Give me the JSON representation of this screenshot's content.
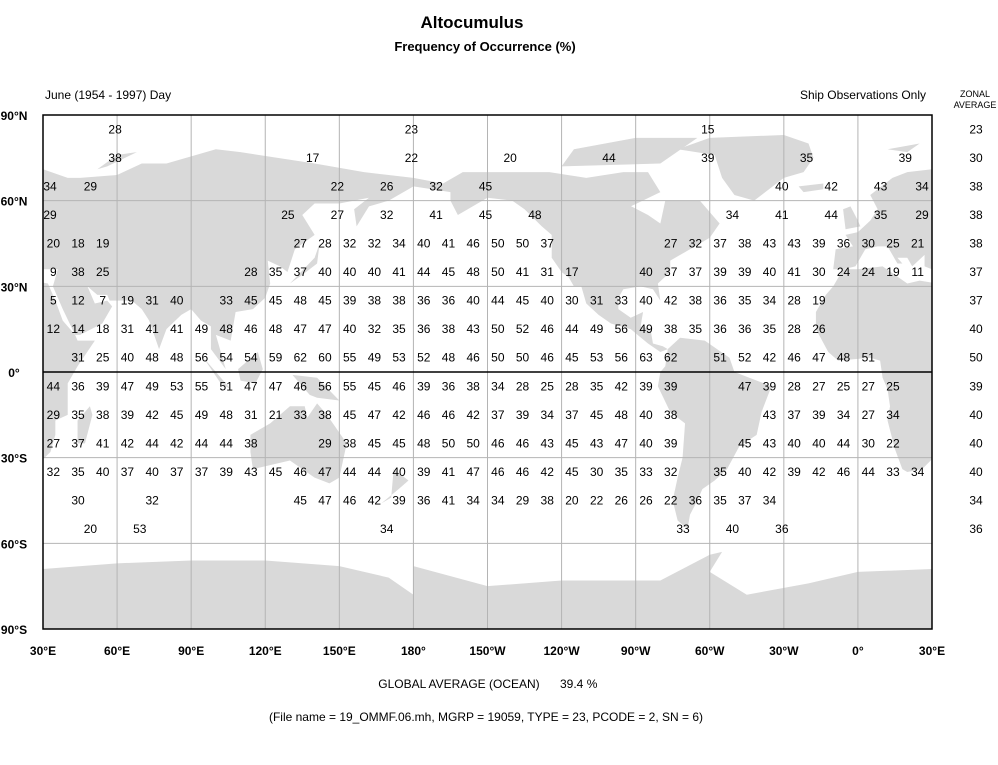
{
  "title": "Altocumulus",
  "subtitle": "Frequency of Occurrence (%)",
  "period_label": "June (1954 - 1997) Day",
  "source_label": "Ship Observations Only",
  "zonal_header": [
    "ZONAL",
    "AVERAGE"
  ],
  "lat_ticks": [
    "90°N",
    "60°N",
    "30°N",
    "0°",
    "30°S",
    "60°S",
    "90°S"
  ],
  "lon_ticks": [
    "30°E",
    "60°E",
    "90°E",
    "120°E",
    "150°E",
    "180°",
    "150°W",
    "120°W",
    "90°W",
    "60°W",
    "30°W",
    "0°",
    "30°E"
  ],
  "global_average_label": "GLOBAL AVERAGE (OCEAN)",
  "global_average_value": "39.4 %",
  "footer": "(File name = 19_OMMF.06.mh, MGRP = 19059, TYPE = 23, PCODE = 2, SN = 6)",
  "colors": {
    "land": "#d9d9d9",
    "grid": "#b4b4b4",
    "ocean": "#ffffff"
  },
  "chart_data": {
    "type": "map-grid",
    "units": "%",
    "rows": [
      {
        "lat": 85,
        "zonal": 23,
        "cells": [
          [
            60,
            28
          ],
          [
            180,
            23
          ],
          [
            -60,
            15
          ]
        ]
      },
      {
        "lat": 75,
        "zonal": 30,
        "cells": [
          [
            60,
            38
          ],
          [
            140,
            17
          ],
          [
            180,
            22
          ],
          [
            -140,
            20
          ],
          [
            -100,
            44
          ],
          [
            -60,
            39
          ],
          [
            -20,
            35
          ],
          [
            20,
            39
          ]
        ]
      },
      {
        "lat": 65,
        "zonal": 38,
        "cells": [
          [
            30,
            34
          ],
          [
            50,
            29
          ],
          [
            150,
            22
          ],
          [
            170,
            26
          ],
          [
            -170,
            32
          ],
          [
            -150,
            45
          ],
          [
            -30,
            40
          ],
          [
            -10,
            42
          ],
          [
            10,
            43
          ],
          [
            30,
            34
          ]
        ]
      },
      {
        "lat": 55,
        "zonal": 38,
        "cells": [
          [
            30,
            29
          ],
          [
            130,
            25
          ],
          [
            150,
            27
          ],
          [
            170,
            32
          ],
          [
            -170,
            41
          ],
          [
            -150,
            45
          ],
          [
            -130,
            48
          ],
          [
            -50,
            34
          ],
          [
            -30,
            41
          ],
          [
            -10,
            44
          ],
          [
            10,
            35
          ],
          [
            30,
            29
          ]
        ]
      },
      {
        "lat": 45,
        "zonal": 38,
        "lon_start": 35,
        "lon_step": 10,
        "values": [
          20,
          18,
          19,
          null,
          null,
          null,
          null,
          null,
          null,
          null,
          27,
          28,
          32,
          32,
          34,
          40,
          41,
          46,
          50,
          50,
          37,
          null,
          null,
          null,
          null,
          27,
          32,
          37,
          38,
          43,
          43,
          39,
          36,
          30,
          25,
          21
        ]
      },
      {
        "lat": 35,
        "zonal": 37,
        "lon_start": 35,
        "lon_step": 10,
        "values": [
          9,
          38,
          25,
          null,
          null,
          null,
          null,
          null,
          28,
          35,
          37,
          40,
          40,
          40,
          41,
          44,
          45,
          48,
          50,
          41,
          31,
          17,
          null,
          null,
          40,
          37,
          37,
          39,
          39,
          40,
          41,
          30,
          24,
          24,
          19,
          11
        ]
      },
      {
        "lat": 25,
        "zonal": 37,
        "lon_start": 35,
        "lon_step": 10,
        "values": [
          5,
          12,
          7,
          19,
          31,
          40,
          null,
          33,
          45,
          45,
          48,
          45,
          39,
          38,
          38,
          36,
          36,
          40,
          44,
          45,
          40,
          30,
          31,
          33,
          40,
          42,
          38,
          36,
          35,
          34,
          28,
          19,
          null,
          null,
          null,
          null
        ]
      },
      {
        "lat": 15,
        "zonal": 40,
        "lon_start": 35,
        "lon_step": 10,
        "values": [
          12,
          14,
          18,
          31,
          41,
          41,
          49,
          48,
          46,
          48,
          47,
          47,
          40,
          32,
          35,
          36,
          38,
          43,
          50,
          52,
          46,
          44,
          49,
          56,
          49,
          38,
          35,
          36,
          36,
          35,
          28,
          26,
          null,
          null,
          null,
          null
        ]
      },
      {
        "lat": 5,
        "zonal": 50,
        "lon_start": 35,
        "lon_step": 10,
        "values": [
          null,
          31,
          25,
          40,
          48,
          48,
          56,
          54,
          54,
          59,
          62,
          60,
          55,
          49,
          53,
          52,
          48,
          46,
          50,
          50,
          46,
          45,
          53,
          56,
          63,
          62,
          null,
          51,
          52,
          42,
          46,
          47,
          48,
          51,
          null,
          null
        ]
      },
      {
        "lat": -5,
        "zonal": 39,
        "lon_start": 35,
        "lon_step": 10,
        "values": [
          44,
          36,
          39,
          47,
          49,
          53,
          55,
          51,
          47,
          47,
          46,
          56,
          55,
          45,
          46,
          39,
          36,
          38,
          34,
          28,
          25,
          28,
          35,
          42,
          39,
          39,
          null,
          null,
          47,
          39,
          28,
          27,
          25,
          27,
          25,
          null
        ]
      },
      {
        "lat": -15,
        "zonal": 40,
        "lon_start": 35,
        "lon_step": 10,
        "values": [
          29,
          35,
          38,
          39,
          42,
          45,
          49,
          48,
          31,
          21,
          33,
          38,
          45,
          47,
          42,
          46,
          46,
          42,
          37,
          39,
          34,
          37,
          45,
          48,
          40,
          38,
          null,
          null,
          null,
          43,
          37,
          39,
          34,
          27,
          34,
          null
        ]
      },
      {
        "lat": -25,
        "zonal": 40,
        "lon_start": 35,
        "lon_step": 10,
        "values": [
          27,
          37,
          41,
          42,
          44,
          42,
          44,
          44,
          38,
          null,
          null,
          29,
          38,
          45,
          45,
          48,
          50,
          50,
          46,
          46,
          43,
          45,
          43,
          47,
          40,
          39,
          null,
          null,
          45,
          43,
          40,
          40,
          44,
          30,
          22,
          null
        ]
      },
      {
        "lat": -35,
        "zonal": 40,
        "lon_start": 35,
        "lon_step": 10,
        "values": [
          32,
          35,
          40,
          37,
          40,
          37,
          37,
          39,
          43,
          45,
          46,
          47,
          44,
          44,
          40,
          39,
          41,
          47,
          46,
          46,
          42,
          45,
          30,
          35,
          33,
          32,
          null,
          35,
          40,
          42,
          39,
          42,
          46,
          44,
          33,
          34
        ]
      },
      {
        "lat": -45,
        "zonal": 34,
        "lon_start": 35,
        "lon_step": 10,
        "values": [
          null,
          30,
          null,
          null,
          32,
          null,
          null,
          null,
          null,
          null,
          45,
          47,
          46,
          42,
          39,
          36,
          41,
          34,
          34,
          29,
          38,
          20,
          22,
          26,
          26,
          22,
          36,
          35,
          37,
          34,
          null,
          null,
          null,
          null,
          null,
          null
        ]
      },
      {
        "lat": -55,
        "zonal": 36,
        "cells": [
          [
            50,
            20
          ],
          [
            70,
            53
          ],
          [
            170,
            34
          ],
          [
            -70,
            33
          ],
          [
            -50,
            40
          ],
          [
            -30,
            36
          ]
        ]
      }
    ]
  }
}
